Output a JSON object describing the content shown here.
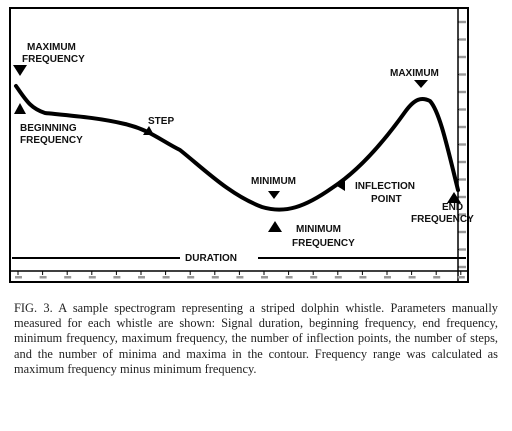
{
  "figure": {
    "labels": {
      "maximum_frequency": [
        "MAXIMUM",
        "FREQUENCY"
      ],
      "beginning_frequency": [
        "BEGINNING",
        "FREQUENCY"
      ],
      "step": "STEP",
      "minimum": "MINIMUM",
      "minimum_frequency": [
        "MINIMUM",
        "FREQUENCY"
      ],
      "inflection_point": [
        "INFLECTION",
        "POINT"
      ],
      "maximum": "MAXIMUM",
      "end_frequency": [
        "END",
        "FREQUENCY"
      ],
      "duration": "DURATION"
    }
  },
  "caption": "FIG. 3. A sample spectrogram representing a striped dolphin whistle. Parameters manually measured for each whistle are shown: Signal duration, beginning frequency, end frequency, minimum frequency, maximum frequency, the number of inflection points, the number of steps, and the number of minima and maxima in the contour. Frequency range was calculated as maximum frequency minus minimum frequency."
}
